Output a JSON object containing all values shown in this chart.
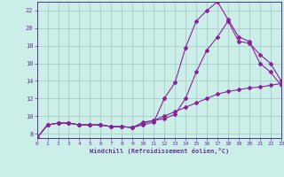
{
  "xlabel": "Windchill (Refroidissement éolien,°C)",
  "bg_color": "#cceee8",
  "line_color": "#882299",
  "grid_color": "#aaccc8",
  "axis_color": "#553388",
  "label_color": "#663399",
  "xlim": [
    0,
    23
  ],
  "ylim": [
    7.5,
    23
  ],
  "xticks": [
    0,
    1,
    2,
    3,
    4,
    5,
    6,
    7,
    8,
    9,
    10,
    11,
    12,
    13,
    14,
    15,
    16,
    17,
    18,
    19,
    20,
    21,
    22,
    23
  ],
  "yticks": [
    8,
    10,
    12,
    14,
    16,
    18,
    20,
    22
  ],
  "line1_x": [
    0,
    1,
    2,
    3,
    4,
    5,
    6,
    7,
    8,
    9,
    10,
    11,
    12,
    13,
    14,
    15,
    16,
    17,
    18,
    19,
    20,
    21,
    22,
    23
  ],
  "line1_y": [
    7.5,
    9.0,
    9.2,
    9.2,
    9.0,
    9.0,
    9.0,
    8.8,
    8.8,
    8.7,
    9.0,
    9.3,
    12.0,
    13.8,
    17.8,
    20.8,
    22.0,
    23.0,
    21.0,
    19.0,
    18.5,
    16.0,
    15.0,
    13.5
  ],
  "line2_x": [
    0,
    1,
    2,
    3,
    4,
    5,
    6,
    7,
    8,
    9,
    10,
    11,
    12,
    13,
    14,
    15,
    16,
    17,
    18,
    19,
    20,
    21,
    22,
    23
  ],
  "line2_y": [
    7.5,
    9.0,
    9.2,
    9.2,
    9.0,
    9.0,
    9.0,
    8.8,
    8.8,
    8.7,
    9.3,
    9.5,
    9.7,
    10.2,
    12.0,
    15.0,
    17.5,
    19.0,
    20.8,
    18.5,
    18.3,
    17.0,
    16.0,
    14.0
  ],
  "line3_x": [
    0,
    1,
    2,
    3,
    4,
    5,
    6,
    7,
    8,
    9,
    10,
    11,
    12,
    13,
    14,
    15,
    16,
    17,
    18,
    19,
    20,
    21,
    22,
    23
  ],
  "line3_y": [
    7.5,
    9.0,
    9.2,
    9.2,
    9.0,
    9.0,
    9.0,
    8.8,
    8.8,
    8.7,
    9.2,
    9.5,
    10.0,
    10.5,
    11.0,
    11.5,
    12.0,
    12.5,
    12.8,
    13.0,
    13.2,
    13.3,
    13.5,
    13.7
  ]
}
